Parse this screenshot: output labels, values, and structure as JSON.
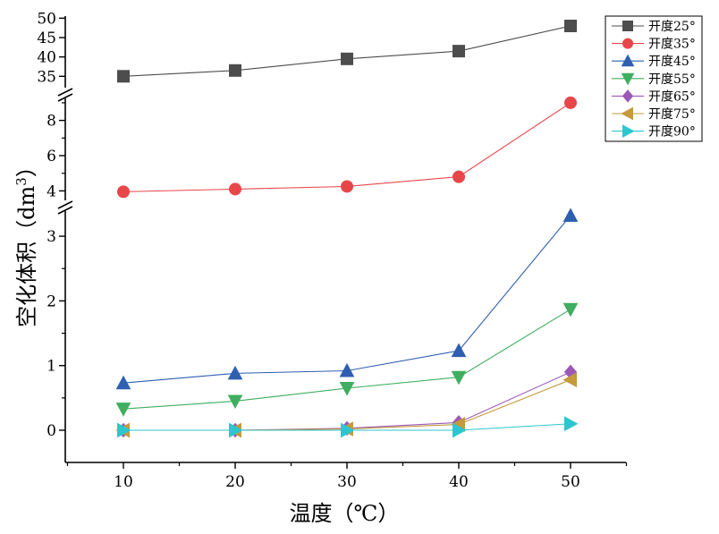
{
  "chart_data": {
    "type": "line",
    "xlabel": "温度（℃）",
    "ylabel_main": "空化体积（dm",
    "ylabel_sup": "3",
    "ylabel_close": "）",
    "x": [
      10,
      20,
      30,
      40,
      50
    ],
    "x_ticks": [
      "10",
      "20",
      "30",
      "40",
      "50"
    ],
    "y_axis_breaks": "two breaks: segment [0,3.4], segment [3.8,9.2], segment [32,50]",
    "y_ticks_low": [
      "0",
      "1",
      "2",
      "3"
    ],
    "y_ticks_mid": [
      "4",
      "6",
      "8"
    ],
    "y_ticks_high": [
      "35",
      "40",
      "45",
      "50"
    ],
    "grid": false,
    "legend_position": "top-right",
    "series": [
      {
        "name": "开度25°",
        "color": "#4d4d4d",
        "marker": "square",
        "values": [
          35,
          36.5,
          39.5,
          41.5,
          48
        ]
      },
      {
        "name": "开度35°",
        "color": "#e8474a",
        "marker": "circle",
        "values": [
          3.95,
          4.1,
          4.25,
          4.8,
          9.0
        ]
      },
      {
        "name": "开度45°",
        "color": "#2e5fb0",
        "marker": "triangle-up",
        "values": [
          0.73,
          0.88,
          0.92,
          1.23,
          3.32
        ]
      },
      {
        "name": "开度55°",
        "color": "#3fae5e",
        "marker": "triangle-down",
        "values": [
          0.33,
          0.45,
          0.65,
          0.82,
          1.87
        ]
      },
      {
        "name": "开度65°",
        "color": "#9b59b6",
        "marker": "diamond",
        "values": [
          0.0,
          0.0,
          0.03,
          0.12,
          0.9
        ]
      },
      {
        "name": "开度75°",
        "color": "#c49a3c",
        "marker": "triangle-left",
        "values": [
          0.0,
          0.0,
          0.02,
          0.09,
          0.78
        ]
      },
      {
        "name": "开度90°",
        "color": "#2cc6cf",
        "marker": "triangle-right",
        "values": [
          0.0,
          0.0,
          0.0,
          0.0,
          0.1
        ]
      }
    ]
  }
}
